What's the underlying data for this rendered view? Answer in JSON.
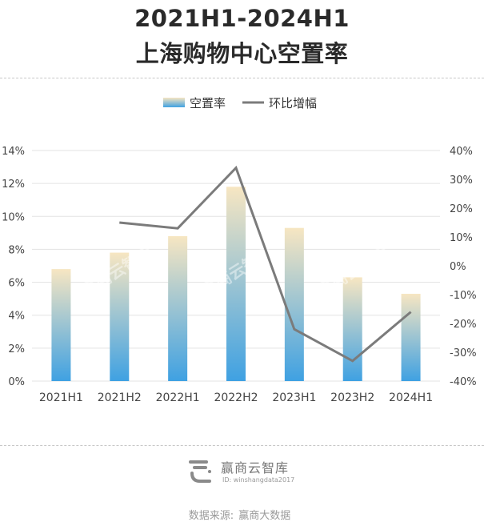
{
  "title_line1": "2021H1-2024H1",
  "title_line2": "上海购物中心空置率",
  "legend": {
    "bar_label": "空置率",
    "line_label": "环比增幅"
  },
  "colors": {
    "bar_top": "#f7e6c2",
    "bar_bottom": "#3fa1e2",
    "line": "#7b7b7b",
    "grid": "#e3e3e3",
    "axis_text": "#444444"
  },
  "chart_data": {
    "type": "bar",
    "categories": [
      "2021H1",
      "2021H2",
      "2022H1",
      "2022H2",
      "2023H1",
      "2023H2",
      "2024H1"
    ],
    "series": [
      {
        "name": "空置率",
        "type": "bar",
        "axis": "left",
        "values": [
          6.8,
          7.8,
          8.8,
          11.8,
          9.3,
          6.3,
          5.3
        ]
      },
      {
        "name": "环比增幅",
        "type": "line",
        "axis": "right",
        "values": [
          null,
          15,
          13,
          34,
          -22,
          -33,
          -16
        ]
      }
    ],
    "y_left": {
      "range": [
        0,
        14
      ],
      "ticks": [
        "14%",
        "12%",
        "10%",
        "8%",
        "6%",
        "4%",
        "2%",
        "0%"
      ]
    },
    "y_right": {
      "range": [
        -40,
        40
      ],
      "ticks": [
        "40%",
        "30%",
        "20%",
        "10%",
        "0%",
        "-10%",
        "-20%",
        "-30%",
        "-40%"
      ]
    },
    "grid": true,
    "legend_position": "top-center"
  },
  "watermark_text": "赢商云智库",
  "footer": {
    "brand_name": "赢商云智库",
    "brand_id": "ID: winshangdata2017",
    "source_label": "数据来源:",
    "source_value": "赢商大数据"
  }
}
